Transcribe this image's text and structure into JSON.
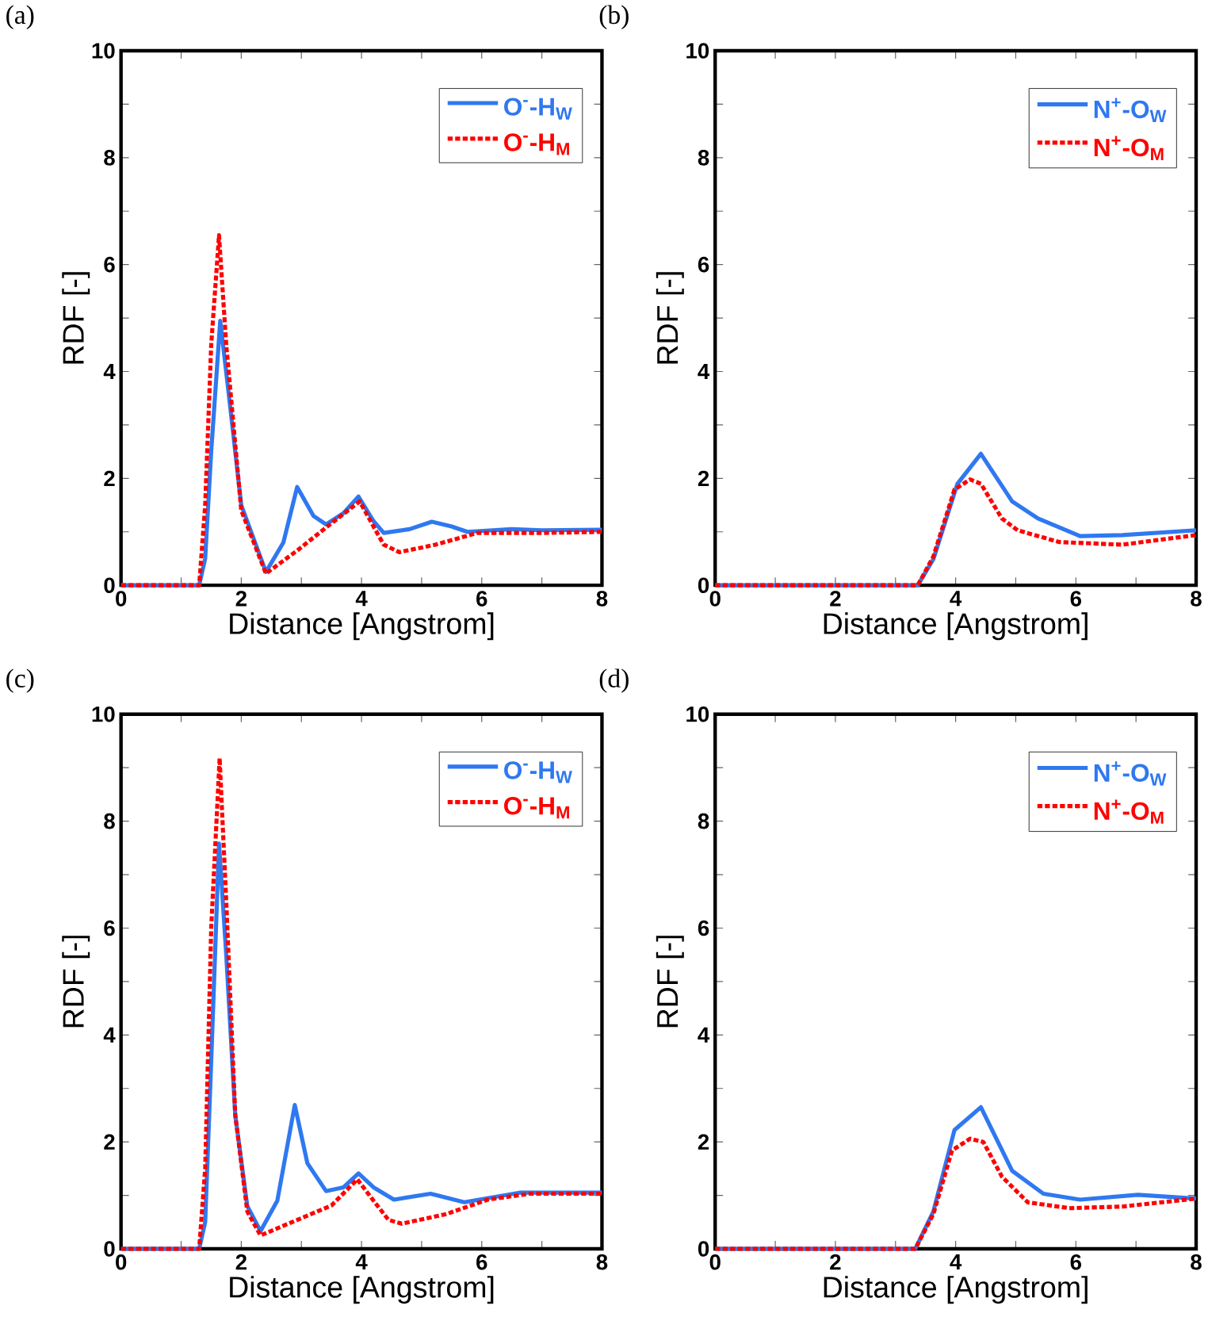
{
  "chart_data": [
    {
      "type": "line",
      "title": "(a)",
      "xlabel": "Distance [Angstrom]",
      "ylabel": "RDF [-]",
      "xlim": [
        0,
        8
      ],
      "ylim": [
        0,
        10
      ],
      "xticks": [
        0,
        {
          "value": 1,
          "label": null
        },
        2,
        {
          "value": 3,
          "label": null
        },
        4,
        {
          "value": 5,
          "label": null
        },
        6,
        {
          "value": 7,
          "label": null
        },
        8
      ],
      "yticks": [
        0,
        {
          "value": 1,
          "label": null
        },
        2,
        {
          "value": 3,
          "label": null
        },
        4,
        {
          "value": 5,
          "label": null
        },
        6,
        {
          "value": 7,
          "label": null
        },
        8,
        {
          "value": 9,
          "label": null
        },
        10
      ],
      "legend": "top right",
      "series": [
        {
          "name": "O$^{-}$-H$_{W}$",
          "color": "#2f78f0",
          "line_style": "solid",
          "x": [
            0,
            1.3,
            1.4,
            1.5,
            1.65,
            1.8,
            2.0,
            2.41,
            2.7,
            2.93,
            3.2,
            3.41,
            3.7,
            3.95,
            4.2,
            4.37,
            4.8,
            5.17,
            5.5,
            5.76,
            6.5,
            7,
            8
          ],
          "values": [
            0,
            0,
            0.5,
            2.5,
            4.95,
            3.5,
            1.5,
            0.25,
            0.8,
            1.84,
            1.3,
            1.14,
            1.35,
            1.66,
            1.2,
            0.98,
            1.05,
            1.19,
            1.1,
            1.0,
            1.05,
            1.03,
            1.04
          ]
        },
        {
          "name": "O$^{-}$-H$_{M}$",
          "color": "#ff0000",
          "line_style": "dotted",
          "x": [
            0,
            1.3,
            1.4,
            1.5,
            1.63,
            1.75,
            2.0,
            2.41,
            2.93,
            3.41,
            3.97,
            4.2,
            4.37,
            4.63,
            5.23,
            5.93,
            7,
            8
          ],
          "values": [
            0,
            0,
            1.5,
            4.5,
            6.55,
            4.5,
            1.4,
            0.22,
            0.65,
            1.08,
            1.57,
            1.1,
            0.76,
            0.62,
            0.76,
            0.98,
            0.98,
            1.0
          ]
        }
      ]
    },
    {
      "type": "line",
      "title": "(b)",
      "xlabel": "Distance [Angstrom]",
      "ylabel": "RDF [-]",
      "xlim": [
        0,
        8
      ],
      "ylim": [
        0,
        10
      ],
      "xticks": [
        0,
        {
          "value": 1,
          "label": null
        },
        2,
        {
          "value": 3,
          "label": null
        },
        4,
        {
          "value": 5,
          "label": null
        },
        6,
        {
          "value": 7,
          "label": null
        },
        8
      ],
      "yticks": [
        0,
        {
          "value": 1,
          "label": null
        },
        2,
        {
          "value": 3,
          "label": null
        },
        4,
        {
          "value": 5,
          "label": null
        },
        6,
        {
          "value": 7,
          "label": null
        },
        8,
        {
          "value": 9,
          "label": null
        },
        10
      ],
      "legend": "top right",
      "series": [
        {
          "name": "N$^{+}$-O$_{W}$",
          "color": "#2f78f0",
          "line_style": "solid",
          "x": [
            0,
            3.37,
            3.63,
            4.03,
            4.42,
            4.94,
            5.37,
            6.07,
            6.77,
            8
          ],
          "values": [
            0,
            0,
            0.49,
            1.9,
            2.46,
            1.57,
            1.25,
            0.92,
            0.94,
            1.03
          ]
        },
        {
          "name": "N$^{+}$-O$_{M}$",
          "color": "#ff0000",
          "line_style": "dotted",
          "x": [
            0,
            3.37,
            3.63,
            3.98,
            4.24,
            4.42,
            4.77,
            5.03,
            5.72,
            6.77,
            8
          ],
          "values": [
            0,
            0,
            0.54,
            1.79,
            1.98,
            1.9,
            1.25,
            1.03,
            0.81,
            0.76,
            0.94
          ]
        }
      ]
    },
    {
      "type": "line",
      "title": "(c)",
      "xlabel": "Distance [Angstrom]",
      "ylabel": "RDF [-]",
      "xlim": [
        0,
        8
      ],
      "ylim": [
        0,
        10
      ],
      "xticks": [
        0,
        {
          "value": 1,
          "label": null
        },
        2,
        {
          "value": 3,
          "label": null
        },
        4,
        {
          "value": 5,
          "label": null
        },
        6,
        {
          "value": 7,
          "label": null
        },
        8
      ],
      "yticks": [
        0,
        {
          "value": 1,
          "label": null
        },
        2,
        {
          "value": 3,
          "label": null
        },
        4,
        {
          "value": 5,
          "label": null
        },
        6,
        {
          "value": 7,
          "label": null
        },
        8,
        {
          "value": 9,
          "label": null
        },
        10
      ],
      "legend": "top right",
      "series": [
        {
          "name": "O$^{-}$-H$_{W}$",
          "color": "#2f78f0",
          "line_style": "solid",
          "x": [
            0,
            1.3,
            1.4,
            1.5,
            1.63,
            1.75,
            1.9,
            2.1,
            2.32,
            2.6,
            2.89,
            3.1,
            3.41,
            3.7,
            3.95,
            4.2,
            4.54,
            5.15,
            5.71,
            6.63,
            8
          ],
          "values": [
            0,
            0,
            0.5,
            3.5,
            7.58,
            5.5,
            2.5,
            0.8,
            0.33,
            0.9,
            2.69,
            1.6,
            1.08,
            1.15,
            1.41,
            1.15,
            0.92,
            1.03,
            0.87,
            1.05,
            1.05
          ]
        },
        {
          "name": "O$^{-}$-H$_{M}$",
          "color": "#ff0000",
          "line_style": "dotted",
          "x": [
            0,
            1.3,
            1.4,
            1.5,
            1.64,
            1.75,
            1.9,
            2.1,
            2.32,
            2.93,
            3.5,
            3.93,
            4.2,
            4.45,
            4.67,
            5.41,
            6.1,
            6.8,
            8
          ],
          "values": [
            0,
            0,
            1.5,
            6,
            9.18,
            6.5,
            2.5,
            0.7,
            0.25,
            0.54,
            0.81,
            1.3,
            0.9,
            0.54,
            0.47,
            0.65,
            0.92,
            1.03,
            1.03
          ]
        }
      ]
    },
    {
      "type": "line",
      "title": "(d)",
      "xlabel": "Distance [Angstrom]",
      "ylabel": "RDF [-]",
      "xlim": [
        0,
        8
      ],
      "ylim": [
        0,
        10
      ],
      "xticks": [
        0,
        {
          "value": 1,
          "label": null
        },
        2,
        {
          "value": 3,
          "label": null
        },
        4,
        {
          "value": 5,
          "label": null
        },
        6,
        {
          "value": 7,
          "label": null
        },
        8
      ],
      "yticks": [
        0,
        {
          "value": 1,
          "label": null
        },
        2,
        {
          "value": 3,
          "label": null
        },
        4,
        {
          "value": 5,
          "label": null
        },
        6,
        {
          "value": 7,
          "label": null
        },
        8,
        {
          "value": 9,
          "label": null
        },
        10
      ],
      "legend": "top right",
      "series": [
        {
          "name": "N$^{+}$-O$_{W}$",
          "color": "#2f78f0",
          "line_style": "solid",
          "x": [
            0,
            3.33,
            3.63,
            3.98,
            4.42,
            4.94,
            5.46,
            6.07,
            7.03,
            8
          ],
          "values": [
            0,
            0,
            0.7,
            2.22,
            2.65,
            1.46,
            1.03,
            0.92,
            1.01,
            0.94
          ]
        },
        {
          "name": "N$^{+}$-O$_{M}$",
          "color": "#ff0000",
          "line_style": "dotted",
          "x": [
            0,
            3.33,
            3.63,
            3.94,
            4.24,
            4.46,
            4.77,
            5.2,
            5.89,
            6.77,
            8
          ],
          "values": [
            0,
            0,
            0.65,
            1.84,
            2.06,
            2.0,
            1.35,
            0.87,
            0.76,
            0.79,
            0.94
          ]
        }
      ]
    }
  ]
}
